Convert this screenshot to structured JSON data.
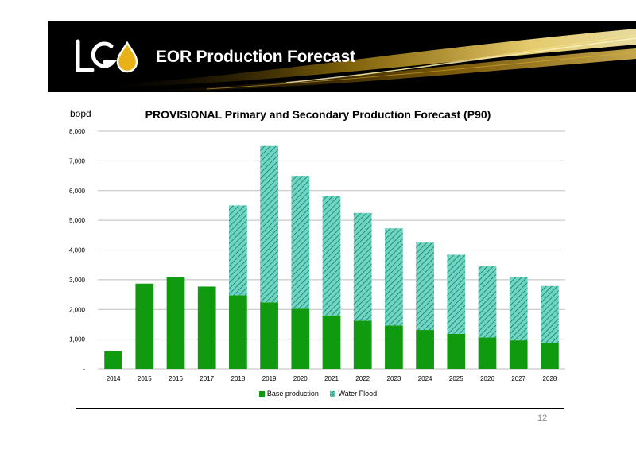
{
  "header": {
    "logo_text": "LGO",
    "title": "EOR Production Forecast"
  },
  "page_number": "12",
  "chart_data": {
    "type": "bar",
    "stacked": true,
    "title": "PROVISIONAL Primary and Secondary Production Forecast (P90)",
    "ylabel": "bopd",
    "xlabel": "",
    "ylim": [
      0,
      8000
    ],
    "yticks": [
      0,
      1000,
      2000,
      3000,
      4000,
      5000,
      6000,
      7000,
      8000
    ],
    "ytick_labels": [
      "-",
      "1,000",
      "2,000",
      "3,000",
      "4,000",
      "5,000",
      "6,000",
      "7,000",
      "8,000"
    ],
    "grid": true,
    "legend_position": "bottom",
    "categories": [
      "2014",
      "2015",
      "2016",
      "2017",
      "2018",
      "2019",
      "2020",
      "2021",
      "2022",
      "2023",
      "2024",
      "2025",
      "2026",
      "2027",
      "2028"
    ],
    "series": [
      {
        "name": "Base production",
        "color": "#0f9a0f",
        "values": [
          600,
          2870,
          3080,
          2770,
          2480,
          2240,
          2020,
          1800,
          1620,
          1460,
          1310,
          1180,
          1060,
          960,
          860
        ]
      },
      {
        "name": "Water Flood",
        "color": "#4fc3ad",
        "values": [
          0,
          0,
          0,
          0,
          3020,
          5260,
          4480,
          4030,
          3630,
          3270,
          2940,
          2660,
          2390,
          2140,
          1930
        ]
      }
    ]
  }
}
